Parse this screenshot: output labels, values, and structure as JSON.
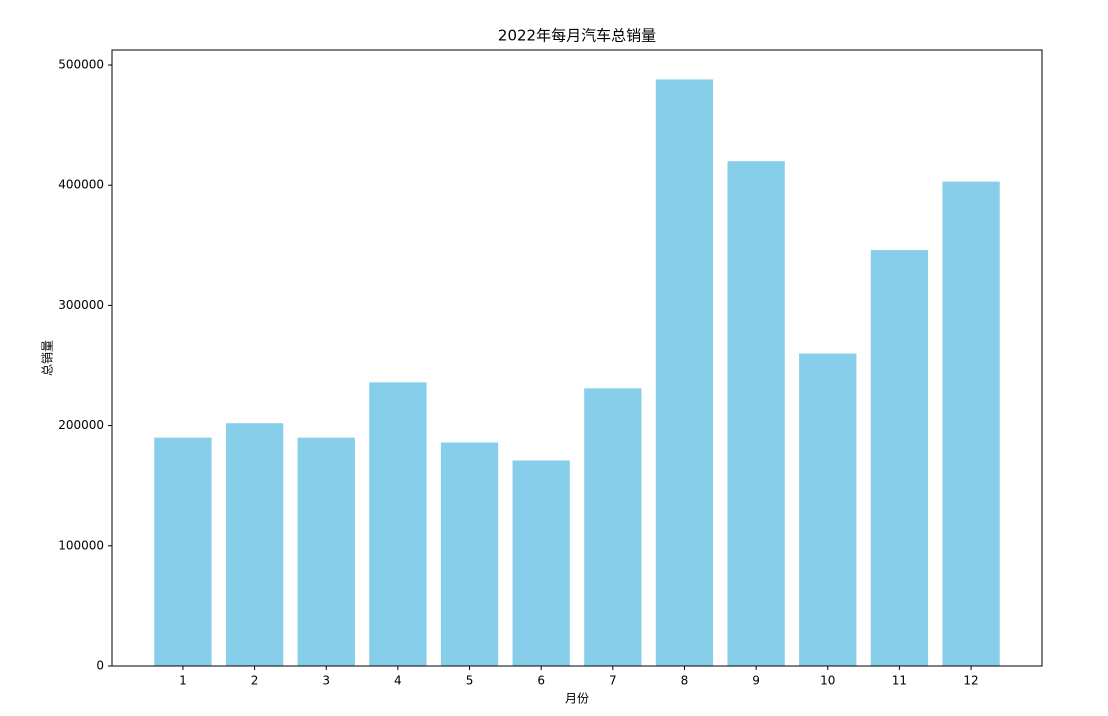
{
  "chart_data": {
    "type": "bar",
    "title": "2022年每月汽车总销量",
    "x_label": "月份",
    "y_label": "总销量",
    "categories": [
      "1",
      "2",
      "3",
      "4",
      "5",
      "6",
      "7",
      "8",
      "9",
      "10",
      "11",
      "12"
    ],
    "values": [
      190000,
      202000,
      190000,
      236000,
      186000,
      171000,
      231000,
      488000,
      420000,
      260000,
      346000,
      403000
    ],
    "color": "#87ceeb",
    "ylim": [
      0,
      512500
    ],
    "yticks": [
      0,
      100000,
      200000,
      300000,
      400000,
      500000
    ],
    "grid": false
  }
}
